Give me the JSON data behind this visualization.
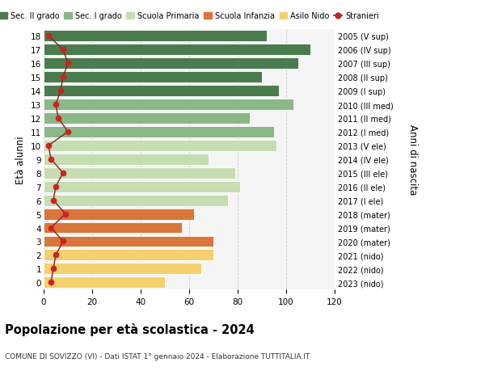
{
  "ages": [
    18,
    17,
    16,
    15,
    14,
    13,
    12,
    11,
    10,
    9,
    8,
    7,
    6,
    5,
    4,
    3,
    2,
    1,
    0
  ],
  "bar_values": [
    92,
    110,
    105,
    90,
    97,
    103,
    85,
    95,
    96,
    68,
    79,
    81,
    76,
    62,
    57,
    70,
    70,
    65,
    50
  ],
  "bar_colors": [
    "#4a7c4e",
    "#4a7c4e",
    "#4a7c4e",
    "#4a7c4e",
    "#4a7c4e",
    "#8ab888",
    "#8ab888",
    "#8ab888",
    "#c5ddb0",
    "#c5ddb0",
    "#c5ddb0",
    "#c5ddb0",
    "#c5ddb0",
    "#d9763b",
    "#d9763b",
    "#d9763b",
    "#f5d06e",
    "#f5d06e",
    "#f5d06e"
  ],
  "stranieri": [
    2,
    8,
    10,
    8,
    7,
    5,
    6,
    10,
    2,
    3,
    8,
    5,
    4,
    9,
    3,
    8,
    5,
    4,
    3
  ],
  "right_labels": [
    "2005 (V sup)",
    "2006 (IV sup)",
    "2007 (III sup)",
    "2008 (II sup)",
    "2009 (I sup)",
    "2010 (III med)",
    "2011 (II med)",
    "2012 (I med)",
    "2013 (V ele)",
    "2014 (IV ele)",
    "2015 (III ele)",
    "2016 (II ele)",
    "2017 (I ele)",
    "2018 (mater)",
    "2019 (mater)",
    "2020 (mater)",
    "2021 (nido)",
    "2022 (nido)",
    "2023 (nido)"
  ],
  "legend_labels": [
    "Sec. II grado",
    "Sec. I grado",
    "Scuola Primaria",
    "Scuola Infanzia",
    "Asilo Nido",
    "Stranieri"
  ],
  "legend_colors": [
    "#4a7c4e",
    "#8ab888",
    "#c5ddb0",
    "#d9763b",
    "#f5d06e",
    "#cc2222"
  ],
  "ylabel_left": "Età alunni",
  "ylabel_right": "Anni di nascita",
  "title": "Popolazione per età scolastica - 2024",
  "subtitle": "COMUNE DI SOVIZZO (VI) - Dati ISTAT 1° gennaio 2024 - Elaborazione TUTTITALIA.IT",
  "xlim": [
    0,
    120
  ],
  "xticks": [
    0,
    20,
    40,
    60,
    80,
    100,
    120
  ],
  "background_color": "#f5f5f5",
  "grid_color": "#cccccc",
  "stranieri_line_color": "#8b1a1a",
  "stranieri_marker_color": "#cc2222"
}
